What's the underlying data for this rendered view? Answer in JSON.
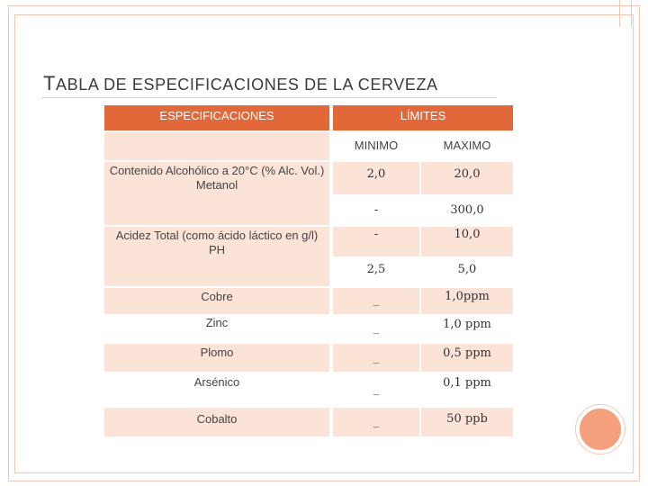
{
  "title_first_letter": "T",
  "title_rest": "ABLA DE ESPECIFICACIONES DE LA CERVEZA",
  "table": {
    "header_left": "ESPECIFICACIONES",
    "header_right": "LÍMITES",
    "sub_min": "MINIMO",
    "sub_max": "MAXIMO",
    "rows": [
      {
        "label": "Contenido Alcohólico a 20°C (% Alc. Vol.)",
        "min": "2,0",
        "max": "20,0"
      },
      {
        "label": "Metanol",
        "min": "-",
        "max": "300,0"
      },
      {
        "label": "Acidez Total (como ácido láctico en g/l)",
        "min": "-",
        "max": "10,0"
      },
      {
        "label": "PH",
        "min": "2,5",
        "max": "5,0"
      },
      {
        "label": "Cobre",
        "min": "_",
        "max": "1,0ppm"
      },
      {
        "label": "Zinc",
        "min": "_",
        "max": "1,0 ppm"
      },
      {
        "label": "Plomo",
        "min": "_",
        "max": "0,5 ppm"
      },
      {
        "label": "Arsénico",
        "min": "_",
        "max": "0,1 ppm"
      },
      {
        "label": "Cobalto",
        "min": "_",
        "max": "50 ppb"
      }
    ]
  },
  "colors": {
    "header": "#e2683a",
    "cell": "#fbe3d8",
    "accent_circle": "#f4a07c",
    "frame": "#f3c6b4"
  }
}
